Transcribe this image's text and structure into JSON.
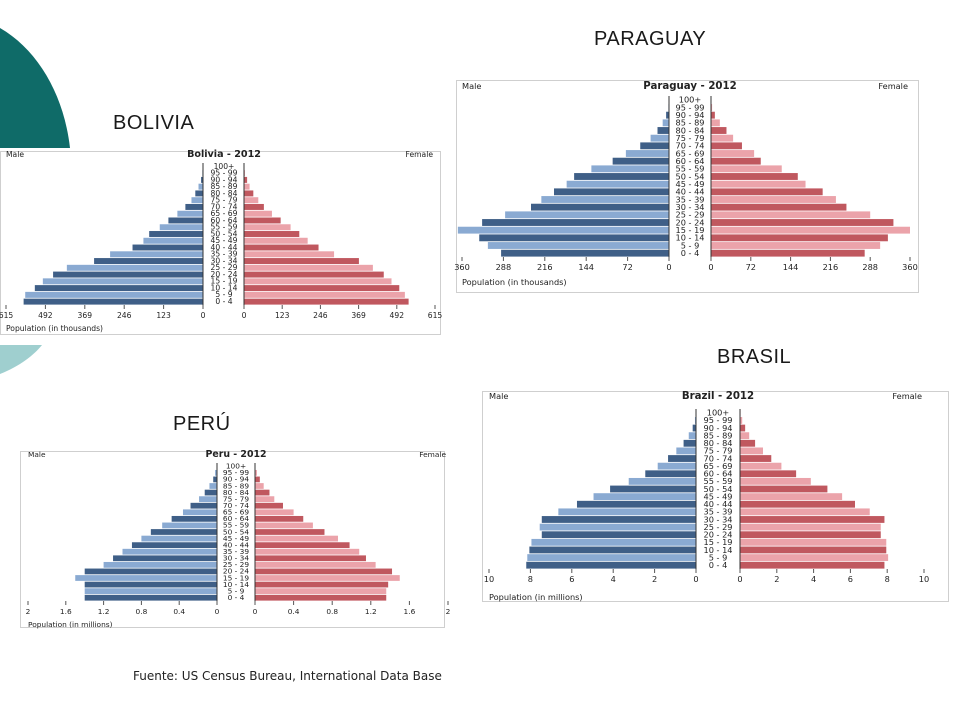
{
  "labels": {
    "paraguay": "PARAGUAY",
    "bolivia": "BOLIVIA",
    "brasil": "BRASIL",
    "peru": "PERÚ"
  },
  "source": "Fuente: US Census Bureau, International Data Base",
  "colors": {
    "male_dark": "#3f5f87",
    "male_light": "#8aaad2",
    "female_dark": "#c0585f",
    "female_light": "#eba3aa",
    "deco_teal": "#0f6b68",
    "deco_light": "#9fcfcf"
  },
  "chart_data": [
    {
      "id": "paraguay",
      "type": "bar",
      "title": "Paraguay - 2012",
      "male_label": "Male",
      "female_label": "Female",
      "xlabel": "Population (in thousands)",
      "xlim": [
        0,
        360
      ],
      "ticks": [
        "360",
        "288",
        "216",
        "144",
        "72",
        "0"
      ],
      "ticks_r": [
        "0",
        "72",
        "144",
        "216",
        "288",
        "360"
      ],
      "categories": [
        "100+",
        "95 - 99",
        "90 - 94",
        "85 - 89",
        "80 - 84",
        "75 - 79",
        "70 - 74",
        "65 - 69",
        "60 - 64",
        "55 - 59",
        "50 - 54",
        "45 - 49",
        "40 - 44",
        "35 - 39",
        "30 - 34",
        "25 - 29",
        "20 - 24",
        "15 - 19",
        "10 - 14",
        "5 - 9",
        "0 - 4"
      ],
      "series": [
        {
          "name": "Male",
          "values": [
            0,
            1,
            5,
            11,
            20,
            32,
            50,
            75,
            98,
            135,
            165,
            178,
            200,
            222,
            240,
            285,
            325,
            368,
            330,
            315,
            292
          ]
        },
        {
          "name": "Female",
          "values": [
            0,
            2,
            7,
            16,
            28,
            40,
            56,
            78,
            90,
            128,
            157,
            171,
            202,
            226,
            245,
            288,
            330,
            360,
            320,
            306,
            278
          ]
        }
      ]
    },
    {
      "id": "bolivia",
      "type": "bar",
      "title": "Bolivia - 2012",
      "male_label": "Male",
      "female_label": "Female",
      "xlabel": "Population (in thousands)",
      "xlim": [
        0,
        615
      ],
      "ticks": [
        "615",
        "492",
        "369",
        "246",
        "123",
        "0"
      ],
      "ticks_r": [
        "0",
        "123",
        "246",
        "369",
        "492",
        "615"
      ],
      "categories": [
        "100+",
        "95 - 99",
        "90 - 94",
        "85 - 89",
        "80 - 84",
        "75 - 79",
        "70 - 74",
        "65 - 69",
        "60 - 64",
        "55 - 59",
        "50 - 54",
        "45 - 49",
        "40 - 44",
        "35 - 39",
        "30 - 34",
        "25 - 29",
        "20 - 24",
        "15 - 19",
        "10 - 14",
        "5 - 9",
        "0 - 4"
      ],
      "series": [
        {
          "name": "Male",
          "values": [
            0,
            2,
            6,
            14,
            24,
            36,
            55,
            80,
            108,
            135,
            168,
            186,
            220,
            290,
            340,
            425,
            468,
            500,
            525,
            555,
            560
          ]
        },
        {
          "name": "Female",
          "values": [
            0,
            3,
            10,
            18,
            30,
            46,
            64,
            90,
            118,
            150,
            178,
            205,
            240,
            290,
            370,
            415,
            450,
            475,
            500,
            518,
            530
          ]
        }
      ]
    },
    {
      "id": "brazil",
      "type": "bar",
      "title": "Brazil - 2012",
      "male_label": "Male",
      "female_label": "Female",
      "xlabel": "Population (in millions)",
      "xlim": [
        0,
        10
      ],
      "ticks": [
        "10",
        "8",
        "6",
        "4",
        "2",
        "0"
      ],
      "ticks_r": [
        "0",
        "2",
        "4",
        "6",
        "8",
        "10"
      ],
      "categories": [
        "100+",
        "95 - 99",
        "90 - 94",
        "85 - 89",
        "80 - 84",
        "75 - 79",
        "70 - 74",
        "65 - 69",
        "60 - 64",
        "55 - 59",
        "50 - 54",
        "45 - 49",
        "40 - 44",
        "35 - 39",
        "30 - 34",
        "25 - 29",
        "20 - 24",
        "15 - 19",
        "10 - 14",
        "5 - 9",
        "0 - 4"
      ],
      "series": [
        {
          "name": "Male",
          "values": [
            0.01,
            0.05,
            0.16,
            0.35,
            0.6,
            0.95,
            1.35,
            1.85,
            2.45,
            3.25,
            4.15,
            4.95,
            5.75,
            6.65,
            7.45,
            7.55,
            7.45,
            7.95,
            8.05,
            8.15,
            8.2
          ]
        },
        {
          "name": "Female",
          "values": [
            0.03,
            0.12,
            0.28,
            0.5,
            0.82,
            1.25,
            1.7,
            2.25,
            3.05,
            3.85,
            4.75,
            5.55,
            6.25,
            7.05,
            7.85,
            7.65,
            7.65,
            7.95,
            7.95,
            8.05,
            7.85
          ]
        }
      ]
    },
    {
      "id": "peru",
      "type": "bar",
      "title": "Peru - 2012",
      "male_label": "Male",
      "female_label": "Female",
      "xlabel": "Population (in millions)",
      "xlim": [
        0,
        2
      ],
      "ticks": [
        "2",
        "1.6",
        "1.2",
        "0.8",
        "0.4",
        "0"
      ],
      "ticks_r": [
        "0",
        "0.4",
        "0.8",
        "1.2",
        "1.6",
        "2"
      ],
      "categories": [
        "100+",
        "95 - 99",
        "90 - 94",
        "85 - 89",
        "80 - 84",
        "75 - 79",
        "70 - 74",
        "65 - 69",
        "60 - 64",
        "55 - 59",
        "50 - 54",
        "45 - 49",
        "40 - 44",
        "35 - 39",
        "30 - 34",
        "25 - 29",
        "20 - 24",
        "15 - 19",
        "10 - 14",
        "5 - 9",
        "0 - 4"
      ],
      "series": [
        {
          "name": "Male",
          "values": [
            0.005,
            0.02,
            0.04,
            0.08,
            0.13,
            0.19,
            0.28,
            0.36,
            0.48,
            0.58,
            0.7,
            0.8,
            0.9,
            1.0,
            1.1,
            1.2,
            1.4,
            1.5,
            1.4,
            1.4,
            1.4
          ]
        },
        {
          "name": "Female",
          "values": [
            0.005,
            0.02,
            0.05,
            0.09,
            0.15,
            0.2,
            0.29,
            0.4,
            0.5,
            0.6,
            0.72,
            0.86,
            0.98,
            1.08,
            1.15,
            1.25,
            1.42,
            1.5,
            1.38,
            1.36,
            1.36
          ]
        }
      ]
    }
  ]
}
